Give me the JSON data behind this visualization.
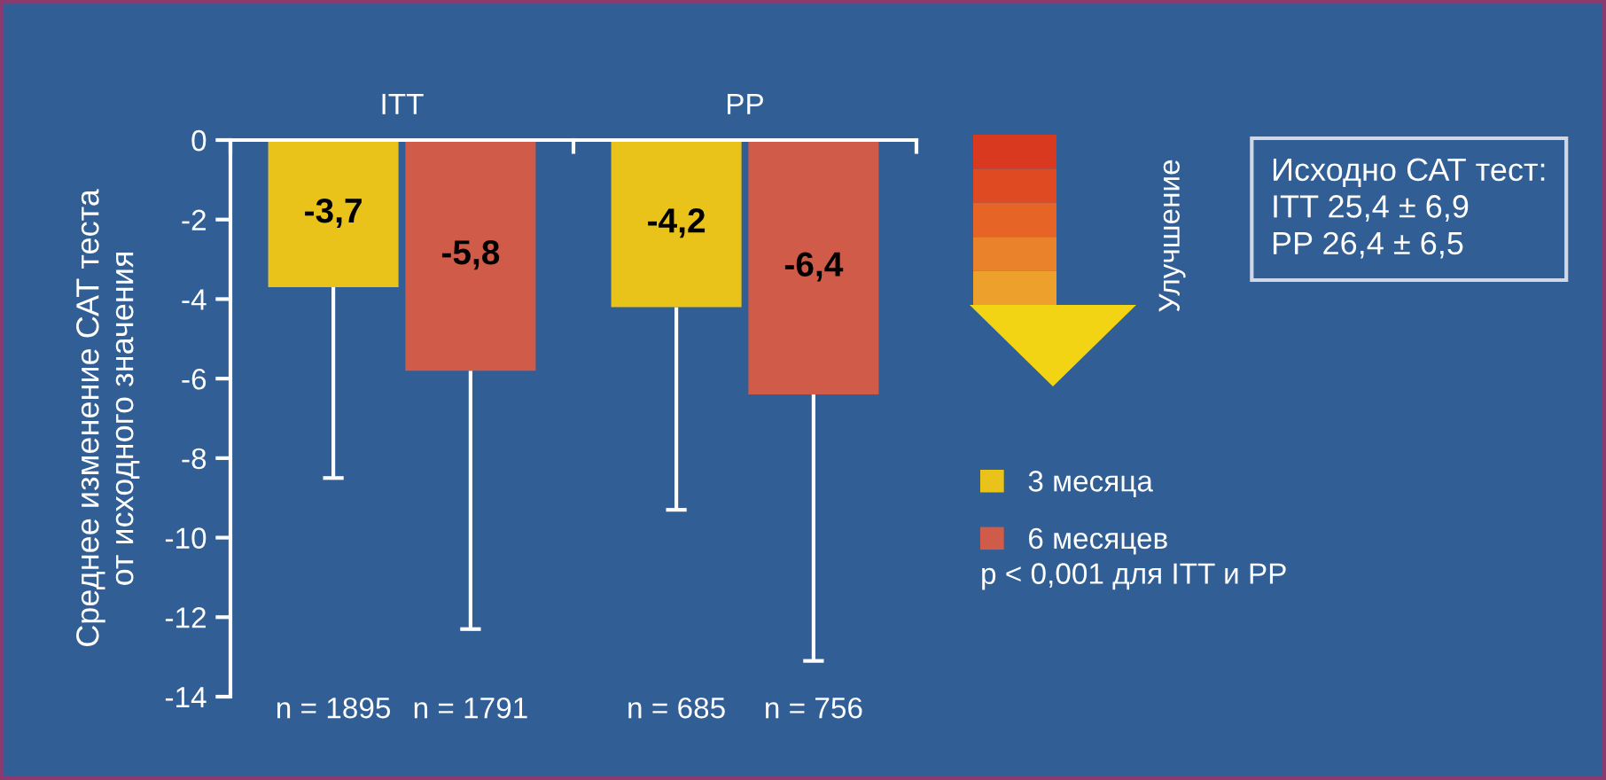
{
  "chart_data": {
    "type": "bar",
    "ylabel": "Среднее изменение САТ теста\nот исходного значения",
    "categories": [
      "ITT",
      "PP"
    ],
    "series": [
      {
        "name": "3 месяца",
        "color": "#e9c21a",
        "values": [
          -3.7,
          -4.2
        ],
        "value_labels": [
          "-3,7",
          "-4,2"
        ],
        "errors": [
          [
            -8.5,
            -3.7
          ],
          [
            -9.3,
            -4.2
          ]
        ]
      },
      {
        "name": "6 месяцев",
        "color": "#cf5b48",
        "values": [
          -5.8,
          -6.4
        ],
        "value_labels": [
          "-5,8",
          "-6,4"
        ],
        "errors": [
          [
            -12.3,
            -5.8
          ],
          [
            -13.1,
            -6.4
          ]
        ]
      }
    ],
    "ylim": [
      -14,
      0
    ],
    "yticks": [
      0,
      -2,
      -4,
      -6,
      -8,
      -10,
      -12,
      -14
    ],
    "grid": false,
    "legend": "right",
    "annotations": [
      "n = 1895",
      "n = 1791",
      "n = 685",
      "n = 756",
      "Улучшение",
      "Исходно САТ тест:\nITT 25,4 ± 6,9\nPP 26,4 ± 6,5",
      "p < 0,001 для ITT и PP"
    ]
  }
}
